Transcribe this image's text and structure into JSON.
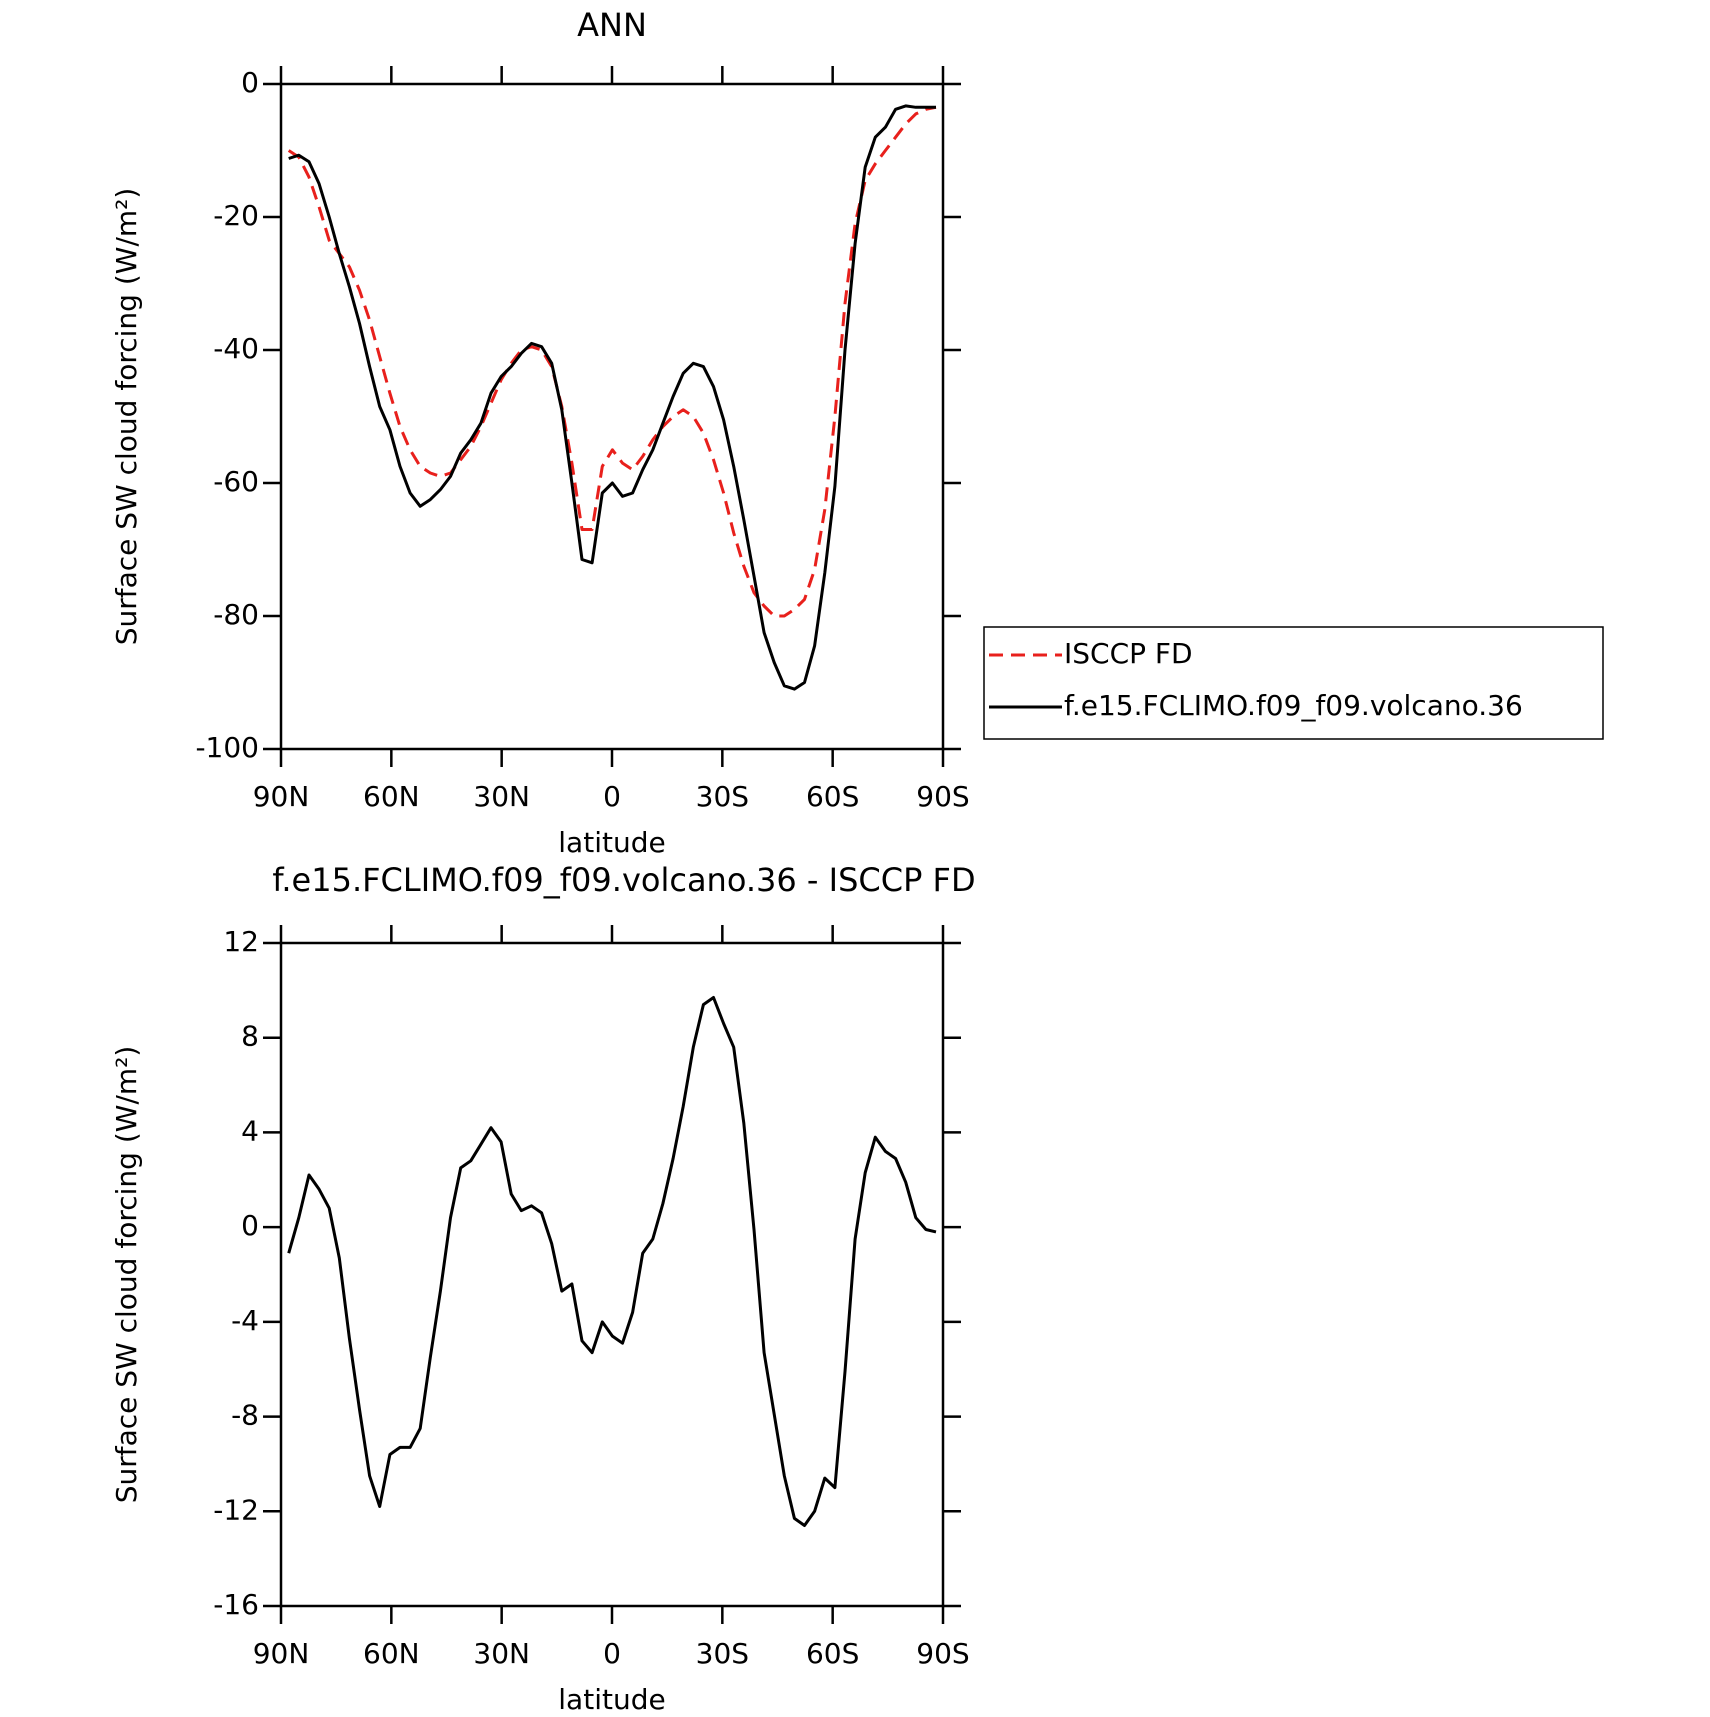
{
  "chart_data": [
    {
      "type": "line",
      "title": "ANN",
      "xlabel": "latitude",
      "ylabel": "Surface SW cloud forcing (W/m²)",
      "x": [
        87.9,
        85.15,
        82.4,
        79.65,
        76.9,
        74.15,
        71.4,
        68.65,
        65.9,
        63.15,
        60.4,
        57.65,
        54.9,
        52.15,
        49.4,
        46.65,
        43.9,
        41.15,
        38.4,
        35.65,
        32.9,
        30.15,
        27.4,
        24.65,
        21.9,
        19.15,
        16.4,
        13.65,
        10.9,
        8.15,
        5.4,
        2.65,
        -0.1,
        -2.85,
        -5.6,
        -8.35,
        -11.1,
        -13.85,
        -16.6,
        -19.35,
        -22.1,
        -24.85,
        -27.6,
        -30.35,
        -33.1,
        -35.85,
        -38.6,
        -41.35,
        -44.1,
        -46.85,
        -49.6,
        -52.35,
        -55.1,
        -57.85,
        -60.6,
        -63.35,
        -66.1,
        -68.85,
        -71.6,
        -74.35,
        -77.1,
        -79.85,
        -82.6,
        -85.35,
        -88.1
      ],
      "series": [
        {
          "name": "ISCCP FD",
          "color": "#e8201c",
          "line_style": "dashed",
          "values": [
            -10,
            -11,
            -14,
            -18.5,
            -23.5,
            -25.5,
            -27.5,
            -31,
            -35.5,
            -41,
            -46.5,
            -51.5,
            -55,
            -57.5,
            -58.5,
            -59,
            -58.5,
            -56.5,
            -54.5,
            -51.5,
            -48,
            -44.5,
            -42,
            -40,
            -39.5,
            -40,
            -42.5,
            -48.5,
            -57,
            -67,
            -67,
            -57.5,
            -55,
            -57,
            -58,
            -56,
            -53.5,
            -51.5,
            -50,
            -49,
            -50,
            -52.5,
            -56.5,
            -61.5,
            -67.5,
            -72.5,
            -76.5,
            -78.5,
            -80,
            -80,
            -79,
            -77.5,
            -73,
            -64,
            -50,
            -33,
            -21,
            -14.5,
            -12,
            -10,
            -8,
            -6,
            -4.5,
            -3.8,
            -3.5
          ]
        },
        {
          "name": "f.e15.FCLIMO.f09_f09.volcano.36",
          "color": "#000000",
          "line_style": "solid",
          "values": [
            -11.2,
            -10.7,
            -11.7,
            -15,
            -20,
            -25.5,
            -30.5,
            -36,
            -42.5,
            -48.5,
            -52,
            -57.5,
            -61.5,
            -63.5,
            -62.5,
            -61,
            -59,
            -55.5,
            -53.5,
            -51,
            -46.5,
            -44,
            -42.5,
            -40.5,
            -39,
            -39.5,
            -42,
            -49,
            -60,
            -71.5,
            -72,
            -61.5,
            -60,
            -62,
            -61.5,
            -58,
            -55,
            -51,
            -47,
            -43.5,
            -42,
            -42.5,
            -45.5,
            -50.5,
            -57.5,
            -65.5,
            -74,
            -82.5,
            -87,
            -90.5,
            -91,
            -90,
            -84.5,
            -73.5,
            -60.5,
            -40,
            -24,
            -12.5,
            -8,
            -6.5,
            -3.8,
            -3.3,
            -3.5,
            -3.5,
            -3.5
          ]
        }
      ],
      "xlim": [
        90,
        -90
      ],
      "xticks": [
        {
          "value": 90,
          "label": "90N"
        },
        {
          "value": 60,
          "label": "60N"
        },
        {
          "value": 30,
          "label": "30N"
        },
        0,
        {
          "value": -30,
          "label": "30S"
        },
        {
          "value": -60,
          "label": "60S"
        },
        {
          "value": -90,
          "label": "90S"
        }
      ],
      "ylim": [
        -100,
        0
      ],
      "yticks": [
        0,
        -20,
        -40,
        -60,
        -80,
        -100
      ],
      "legend": "right"
    },
    {
      "type": "line",
      "title": "f.e15.FCLIMO.f09_f09.volcano.36 - ISCCP FD",
      "xlabel": "latitude",
      "ylabel": "Surface SW cloud forcing (W/m²)",
      "x": [
        87.9,
        85.15,
        82.4,
        79.65,
        76.9,
        74.15,
        71.4,
        68.65,
        65.9,
        63.15,
        60.4,
        57.65,
        54.9,
        52.15,
        49.4,
        46.65,
        43.9,
        41.15,
        38.4,
        35.65,
        32.9,
        30.15,
        27.4,
        24.65,
        21.9,
        19.15,
        16.4,
        13.65,
        10.9,
        8.15,
        5.4,
        2.65,
        -0.1,
        -2.85,
        -5.6,
        -8.35,
        -11.1,
        -13.85,
        -16.6,
        -19.35,
        -22.1,
        -24.85,
        -27.6,
        -30.35,
        -33.1,
        -35.85,
        -38.6,
        -41.35,
        -44.1,
        -46.85,
        -49.6,
        -52.35,
        -55.1,
        -57.85,
        -60.6,
        -63.35,
        -66.1,
        -68.85,
        -71.6,
        -74.35,
        -77.1,
        -79.85,
        -82.6,
        -85.35,
        -88.1
      ],
      "series": [
        {
          "color": "#000000",
          "line_style": "solid",
          "values": [
            -1.1,
            0.4,
            2.2,
            1.6,
            0.8,
            -1.3,
            -4.7,
            -7.7,
            -10.5,
            -11.8,
            -9.6,
            -9.3,
            -9.3,
            -8.5,
            -5.5,
            -2.7,
            0.4,
            2.5,
            2.8,
            3.5,
            4.2,
            3.6,
            1.4,
            0.7,
            0.9,
            0.6,
            -0.7,
            -2.7,
            -2.4,
            -4.8,
            -5.3,
            -4,
            -4.6,
            -4.9,
            -3.6,
            -1.1,
            -0.5,
            1,
            2.9,
            5.1,
            7.6,
            9.4,
            9.7,
            8.6,
            7.6,
            4.4,
            -0.1,
            -5.3,
            -7.9,
            -10.5,
            -12.3,
            -12.6,
            -12,
            -10.6,
            -11,
            -6.1,
            -0.5,
            2.3,
            3.8,
            3.2,
            2.9,
            1.9,
            0.4,
            -0.1,
            -0.2
          ]
        }
      ],
      "xlim": [
        90,
        -90
      ],
      "xticks": [
        {
          "value": 90,
          "label": "90N"
        },
        {
          "value": 60,
          "label": "60N"
        },
        {
          "value": 30,
          "label": "30N"
        },
        0,
        {
          "value": -30,
          "label": "30S"
        },
        {
          "value": -60,
          "label": "60S"
        },
        {
          "value": -90,
          "label": "90S"
        }
      ],
      "ylim": [
        -16,
        12
      ],
      "yticks": [
        12,
        8,
        4,
        0,
        -4,
        -8,
        -12,
        -16
      ]
    }
  ]
}
